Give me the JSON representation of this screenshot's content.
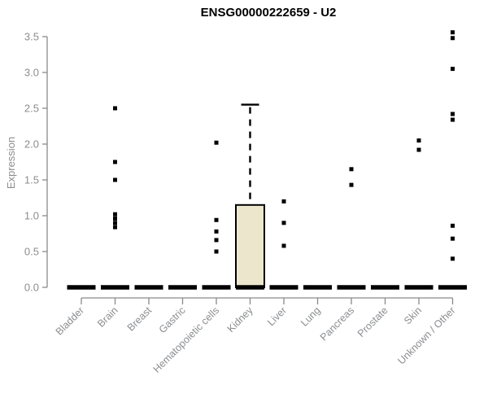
{
  "chart_data": {
    "type": "boxplot",
    "title": "ENSG00000222659 - U2",
    "ylabel": "Expression",
    "xlabel": "",
    "ylim": [
      0.0,
      3.5
    ],
    "yticks": [
      0.0,
      0.5,
      1.0,
      1.5,
      2.0,
      2.5,
      3.0,
      3.5
    ],
    "grid": false,
    "legend": "none",
    "categories": [
      "Bladder",
      "Brain",
      "Breast",
      "Gastric",
      "Hematopoietic cells",
      "Kidney",
      "Liver",
      "Lung",
      "Pancreas",
      "Prostate",
      "Skin",
      "Unknown / Other"
    ],
    "boxes": [
      {
        "category": "Bladder",
        "median": 0,
        "q1": 0,
        "q3": 0,
        "whisker_low": 0,
        "whisker_high": 0,
        "outliers": []
      },
      {
        "category": "Brain",
        "median": 0,
        "q1": 0,
        "q3": 0,
        "whisker_low": 0,
        "whisker_high": 0,
        "outliers": [
          2.5,
          1.75,
          1.5,
          1.02,
          0.96,
          0.9,
          0.84
        ]
      },
      {
        "category": "Breast",
        "median": 0,
        "q1": 0,
        "q3": 0,
        "whisker_low": 0,
        "whisker_high": 0,
        "outliers": []
      },
      {
        "category": "Gastric",
        "median": 0,
        "q1": 0,
        "q3": 0,
        "whisker_low": 0,
        "whisker_high": 0,
        "outliers": []
      },
      {
        "category": "Hematopoietic cells",
        "median": 0,
        "q1": 0,
        "q3": 0,
        "whisker_low": 0,
        "whisker_high": 0,
        "outliers": [
          2.02,
          0.94,
          0.78,
          0.66,
          0.5
        ]
      },
      {
        "category": "Kidney",
        "median": 0,
        "q1": 0,
        "q3": 1.15,
        "whisker_low": 0,
        "whisker_high": 2.55,
        "outliers": []
      },
      {
        "category": "Liver",
        "median": 0,
        "q1": 0,
        "q3": 0,
        "whisker_low": 0,
        "whisker_high": 0,
        "outliers": [
          1.2,
          0.9,
          0.58
        ]
      },
      {
        "category": "Lung",
        "median": 0,
        "q1": 0,
        "q3": 0,
        "whisker_low": 0,
        "whisker_high": 0,
        "outliers": []
      },
      {
        "category": "Pancreas",
        "median": 0,
        "q1": 0,
        "q3": 0,
        "whisker_low": 0,
        "whisker_high": 0,
        "outliers": [
          1.65,
          1.43
        ]
      },
      {
        "category": "Prostate",
        "median": 0,
        "q1": 0,
        "q3": 0,
        "whisker_low": 0,
        "whisker_high": 0,
        "outliers": []
      },
      {
        "category": "Skin",
        "median": 0,
        "q1": 0,
        "q3": 0,
        "whisker_low": 0,
        "whisker_high": 0,
        "outliers": [
          2.05,
          1.92
        ]
      },
      {
        "category": "Unknown / Other",
        "median": 0,
        "q1": 0,
        "q3": 0,
        "whisker_low": 0,
        "whisker_high": 0,
        "outliers": [
          3.56,
          3.48,
          3.05,
          2.42,
          2.34,
          0.86,
          0.68,
          0.4
        ]
      }
    ],
    "colors": {
      "box_fill": "#ece6cc",
      "box_border": "#000000",
      "median": "#000000",
      "outlier": "#000000",
      "whisker": "#000000",
      "axis": "#8a8a8a",
      "tick_label": "#8b8d90",
      "title": "#000000",
      "background": "#ffffff"
    }
  }
}
